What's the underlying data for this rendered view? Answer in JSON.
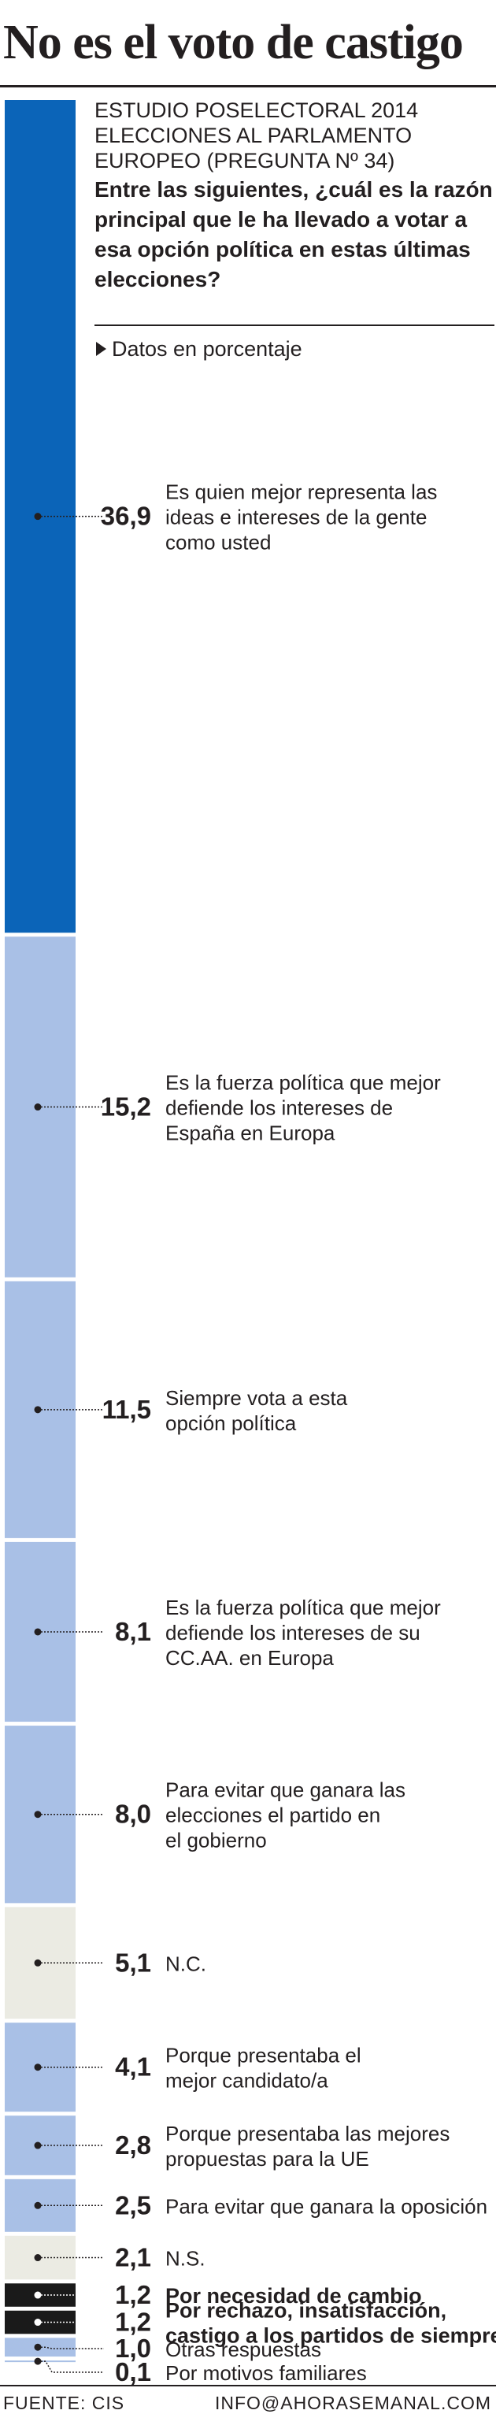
{
  "header": {
    "title": "No es el voto de castigo",
    "kicker": "ESTUDIO POSELECTORAL 2014 ELECCIONES AL PARLAMENTO EUROPEO (Pregunta nº 34)",
    "question": "Entre las siguientes, ¿cuál es la razón principal que le ha llevado a votar a esa opción política en estas últimas elecciones?",
    "unit_note": "Datos en porcentaje"
  },
  "colors": {
    "primary_bar": "#0b64b8",
    "light_bar": "#a9c0e6",
    "neutral_bar": "#ebebe3",
    "highlight_bar": "#1a1a1a",
    "text": "#231f20"
  },
  "chart_data": {
    "type": "bar",
    "orientation": "stacked-vertical",
    "unit": "%",
    "categories": [
      "Es quien mejor representa las ideas  e intereses de la gente como usted",
      "Es la fuerza política que mejor defiende  los intereses de España en Europa",
      "Siempre vota a esta opción política",
      "Es la fuerza política que mejor defiende los intereses de su CC.AA. en Europa",
      "Para evitar que ganara las elecciones el partido en el gobierno",
      "N.C.",
      "Porque presentaba el mejor candidato/a",
      "Porque presentaba las mejores propuestas para la UE",
      "Para evitar que ganara la oposición",
      "N.S.",
      "Por necesidad de cambio",
      "Por rechazo, insatisfacción, castigo a los partidos de siempre",
      "Otras respuestas",
      "Por motivos familiares"
    ],
    "value_labels": [
      "36,9",
      "15,2",
      "11,5",
      "8,1",
      "8,0",
      "5,1",
      "4,1",
      "2,8",
      "2,5",
      "2,1",
      "1,2",
      "1,2",
      "1,0",
      "0,1"
    ],
    "values": [
      36.9,
      15.2,
      11.5,
      8.1,
      8.0,
      5.1,
      4.1,
      2.8,
      2.5,
      2.1,
      1.2,
      1.2,
      1.0,
      0.1
    ],
    "styles": [
      "primary",
      "light",
      "light",
      "light",
      "light",
      "neutral",
      "light",
      "light",
      "light",
      "neutral",
      "highlight",
      "highlight",
      "light",
      "light"
    ],
    "bold_labels": [
      false,
      false,
      false,
      false,
      false,
      false,
      false,
      false,
      false,
      false,
      true,
      true,
      false,
      false
    ],
    "label_lines": [
      [
        "Es quien mejor representa las",
        "ideas  e intereses de la gente",
        "como usted"
      ],
      [
        "Es la fuerza política que mejor",
        "defiende  los intereses de",
        "España en Europa"
      ],
      [
        "Siempre vota a esta",
        "opción política"
      ],
      [
        "Es la fuerza política que mejor",
        "defiende los intereses de su",
        "CC.AA. en Europa"
      ],
      [
        "Para evitar que ganara las",
        "elecciones el partido en",
        "el gobierno"
      ],
      [
        "N.C."
      ],
      [
        "Porque presentaba el",
        "mejor candidato/a"
      ],
      [
        "Porque presentaba las mejores",
        "propuestas para la UE"
      ],
      [
        "Para evitar que ganara la oposición"
      ],
      [
        "N.S."
      ],
      [
        "Por necesidad de cambio"
      ],
      [
        "Por rechazo, insatisfacción,",
        "castigo a los partidos de siempre"
      ],
      [
        "Otras respuestas"
      ],
      [
        "Por motivos familiares"
      ]
    ]
  },
  "footer": {
    "source": "FUENTE: CIS",
    "email": "INFO@AHORASEMANAL.COM"
  }
}
